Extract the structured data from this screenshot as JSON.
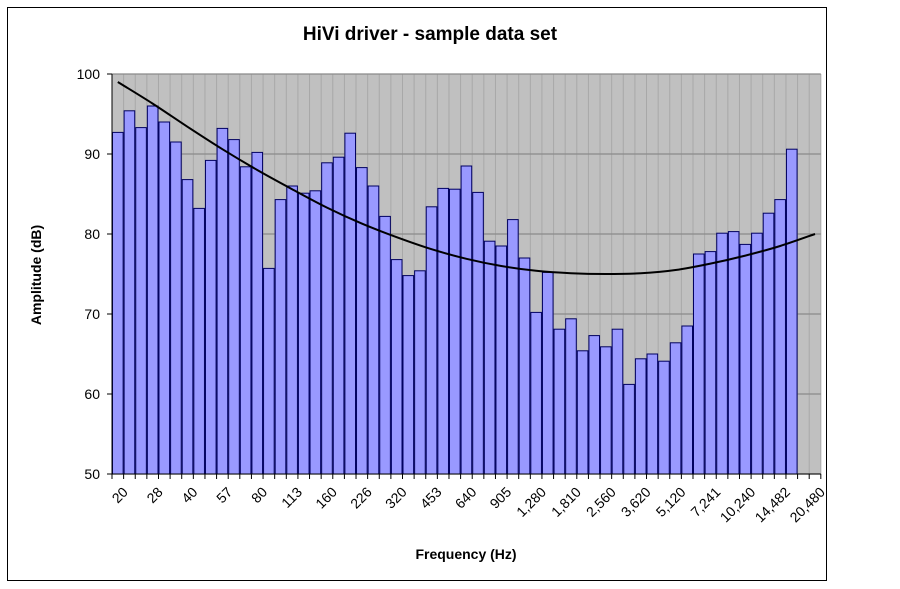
{
  "chart_data": {
    "type": "bar",
    "title": "HiVi driver - sample data set",
    "xlabel": "Frequency (Hz)",
    "ylabel": "Amplitude (dB)",
    "ylim": [
      50,
      100
    ],
    "yticks": [
      "50",
      "60",
      "70",
      "80",
      "90",
      "100"
    ],
    "grid": true,
    "xtick_labels": [
      "20",
      "28",
      "40",
      "57",
      "80",
      "113",
      "160",
      "226",
      "320",
      "453",
      "640",
      "905",
      "1,280",
      "1,810",
      "2,560",
      "3,620",
      "5,120",
      "7,241",
      "10,240",
      "14,482",
      "20,480"
    ],
    "xtick_every_n_bars": 3,
    "series": [
      {
        "name": "Amplitude",
        "type": "bar",
        "color": "#9999ff",
        "values": [
          92.7,
          95.4,
          93.3,
          96,
          94,
          91.5,
          86.8,
          83.2,
          89.2,
          93.2,
          91.8,
          88.4,
          90.2,
          75.7,
          84.3,
          86,
          85.1,
          85.4,
          88.9,
          89.6,
          92.6,
          88.3,
          86,
          82.2,
          76.8,
          74.8,
          75.4,
          83.4,
          85.7,
          85.6,
          88.5,
          85.2,
          79.1,
          78.5,
          81.8,
          77,
          70.2,
          75.2,
          68.1,
          69.4,
          65.4,
          67.3,
          65.9,
          68.1,
          61.2,
          64.4,
          65,
          64.1,
          66.4,
          68.5,
          77.5,
          77.8,
          80.1,
          80.3,
          78.7,
          80.1,
          82.6,
          84.3,
          90.6
        ]
      },
      {
        "name": "Trend",
        "type": "line",
        "color": "#000000",
        "sample_every_n_bars": 3,
        "values": [
          99,
          96.3,
          93.4,
          90.6,
          88,
          85.6,
          83.3,
          81.3,
          79.6,
          78.1,
          76.9,
          76,
          75.4,
          75.1,
          75,
          75.1,
          75.5,
          76.3,
          77.3,
          78.5,
          80
        ]
      }
    ]
  }
}
